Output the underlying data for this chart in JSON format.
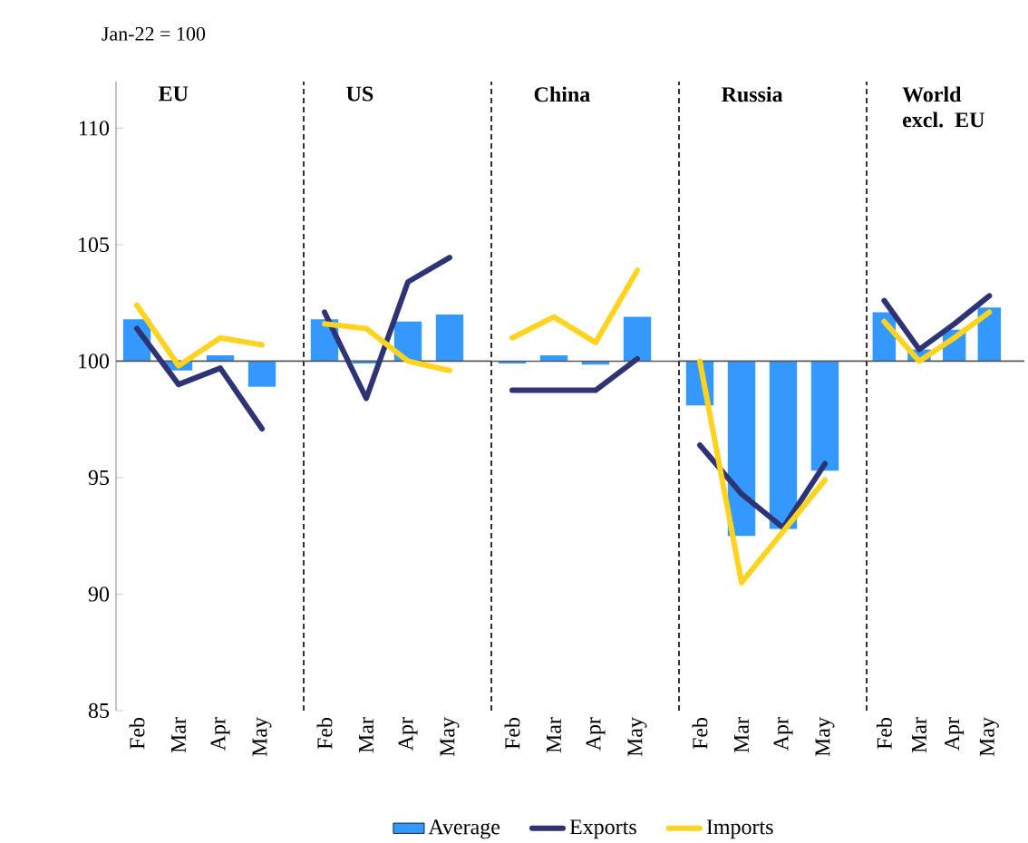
{
  "chart_data": [
    {
      "type": "bar",
      "title": "EU",
      "ylabel": "Jan-22 = 100",
      "categories": [
        "Feb",
        "Mar",
        "Apr",
        "May"
      ],
      "ylim": [
        85,
        112
      ],
      "yticks": [
        85,
        90,
        95,
        100,
        105,
        110
      ],
      "ref_lines": [
        {
          "axis": "y",
          "value": 100
        }
      ],
      "series": [
        {
          "color": "#3399ff",
          "base": [
            100,
            100,
            100,
            100
          ],
          "values": [
            1.8,
            -0.4,
            0.25,
            -1.1
          ]
        },
        {
          "type": "line",
          "color": "#2e3374",
          "values": [
            101.4,
            99.0,
            99.7,
            97.1
          ]
        },
        {
          "type": "line",
          "color": "#ffd320",
          "values": [
            102.4,
            99.8,
            101.0,
            100.7
          ]
        }
      ]
    },
    {
      "type": "bar",
      "title": "US",
      "categories": [
        "Feb",
        "Mar",
        "Apr",
        "May"
      ],
      "ylim": [
        85,
        112
      ],
      "tick_labels": "x",
      "ref_lines": [
        {
          "axis": "y",
          "value": 100
        }
      ],
      "series": [
        {
          "color": "#3399ff",
          "base": [
            100,
            100,
            100,
            100
          ],
          "values": [
            1.8,
            -0.1,
            1.7,
            2.0
          ]
        },
        {
          "type": "line",
          "color": "#2e3374",
          "values": [
            102.1,
            98.4,
            103.4,
            104.45
          ]
        },
        {
          "type": "line",
          "color": "#ffd320",
          "values": [
            101.6,
            101.4,
            100.0,
            99.6
          ]
        }
      ]
    },
    {
      "type": "bar",
      "title": "China",
      "categories": [
        "Feb",
        "Mar",
        "Apr",
        "May"
      ],
      "ylim": [
        85,
        112
      ],
      "tick_labels": "x",
      "legend": "bottom",
      "ref_lines": [
        {
          "axis": "y",
          "value": 100
        }
      ],
      "series": [
        {
          "name": "Average",
          "color": "#3399ff",
          "base": [
            100,
            100,
            100,
            100
          ],
          "values": [
            -0.1,
            0.25,
            -0.15,
            1.9
          ]
        },
        {
          "type": "line",
          "name": "Exports",
          "color": "#2e3374",
          "values": [
            98.75,
            98.75,
            98.75,
            100.1
          ]
        },
        {
          "type": "line",
          "name": "Imports",
          "color": "#ffd320",
          "values": [
            101.0,
            101.9,
            100.8,
            103.9
          ]
        }
      ]
    },
    {
      "type": "bar",
      "title": "Russia",
      "categories": [
        "Feb",
        "Mar",
        "Apr",
        "May"
      ],
      "ylim": [
        85,
        112
      ],
      "tick_labels": "x",
      "ref_lines": [
        {
          "axis": "y",
          "value": 100
        }
      ],
      "series": [
        {
          "color": "#3399ff",
          "base": [
            100,
            100,
            100,
            100
          ],
          "values": [
            -1.9,
            -7.5,
            -7.2,
            -4.7
          ]
        },
        {
          "type": "line",
          "color": "#2e3374",
          "values": [
            96.4,
            94.3,
            92.85,
            95.6
          ]
        },
        {
          "type": "line",
          "color": "#ffd320",
          "values": [
            100.0,
            90.5,
            92.7,
            94.9
          ]
        }
      ]
    },
    {
      "type": "bar",
      "title": "World excl. EU",
      "categories": [
        "Feb",
        "Mar",
        "Apr",
        "May"
      ],
      "ylim": [
        85,
        112
      ],
      "tick_labels": "x",
      "ref_lines": [
        {
          "axis": "y",
          "value": 100
        }
      ],
      "series": [
        {
          "color": "#3399ff",
          "base": [
            100,
            100,
            100,
            100
          ],
          "values": [
            2.1,
            0.5,
            1.35,
            2.3
          ]
        },
        {
          "type": "line",
          "color": "#2e3374",
          "values": [
            102.6,
            100.5,
            101.6,
            102.8
          ]
        },
        {
          "type": "line",
          "color": "#ffd320",
          "values": [
            101.7,
            100.0,
            101.0,
            102.1
          ]
        }
      ]
    }
  ]
}
